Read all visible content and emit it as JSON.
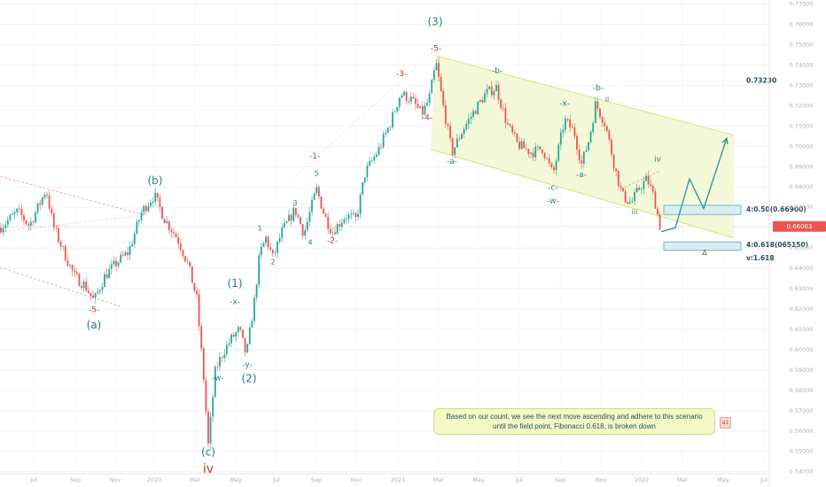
{
  "chart_data": {
    "type": "candlestick",
    "y_axis": {
      "range": [
        0.539,
        0.772
      ],
      "ticks": [
        "0.77000",
        "0.76000",
        "0.75000",
        "0.74000",
        "0.73000",
        "0.72000",
        "0.71000",
        "0.70000",
        "0.69000",
        "0.68000",
        "0.67000",
        "0.66000",
        "0.65000",
        "0.64000",
        "0.63000",
        "0.62000",
        "0.61000",
        "0.60000",
        "0.59000",
        "0.58000",
        "0.57000",
        "0.56000",
        "0.55000",
        "0.54000"
      ],
      "current_price": "0.66063",
      "current_price_value": 0.66063
    },
    "x_axis": {
      "ticks": [
        "Jul",
        "Sep",
        "Nov",
        "2020",
        "Mar",
        "May",
        "Jul",
        "Sep",
        "Nov",
        "2021",
        "Mar",
        "May",
        "Jul",
        "Sep",
        "Nov",
        "2022",
        "Mar",
        "May",
        "Jul"
      ]
    },
    "price_path": [
      {
        "t": 0,
        "p": 0.66
      },
      {
        "t": 20,
        "p": 0.668
      },
      {
        "t": 33,
        "p": 0.661
      },
      {
        "t": 45,
        "p": 0.672
      },
      {
        "t": 52,
        "p": 0.679
      },
      {
        "t": 60,
        "p": 0.661
      },
      {
        "t": 72,
        "p": 0.648
      },
      {
        "t": 84,
        "p": 0.636
      },
      {
        "t": 95,
        "p": 0.632
      },
      {
        "t": 106,
        "p": 0.624
      },
      {
        "t": 118,
        "p": 0.636
      },
      {
        "t": 132,
        "p": 0.643
      },
      {
        "t": 145,
        "p": 0.648
      },
      {
        "t": 160,
        "p": 0.668
      },
      {
        "t": 174,
        "p": 0.676
      },
      {
        "t": 186,
        "p": 0.664
      },
      {
        "t": 200,
        "p": 0.655
      },
      {
        "t": 212,
        "p": 0.642
      },
      {
        "t": 222,
        "p": 0.625
      },
      {
        "t": 230,
        "p": 0.585
      },
      {
        "t": 235,
        "p": 0.553
      },
      {
        "t": 243,
        "p": 0.59
      },
      {
        "t": 252,
        "p": 0.599
      },
      {
        "t": 262,
        "p": 0.606
      },
      {
        "t": 270,
        "p": 0.61
      },
      {
        "t": 278,
        "p": 0.597
      },
      {
        "t": 287,
        "p": 0.624
      },
      {
        "t": 293,
        "p": 0.647
      },
      {
        "t": 300,
        "p": 0.655
      },
      {
        "t": 308,
        "p": 0.645
      },
      {
        "t": 318,
        "p": 0.658
      },
      {
        "t": 333,
        "p": 0.669
      },
      {
        "t": 343,
        "p": 0.657
      },
      {
        "t": 357,
        "p": 0.679
      },
      {
        "t": 367,
        "p": 0.665
      },
      {
        "t": 375,
        "p": 0.658
      },
      {
        "t": 390,
        "p": 0.666
      },
      {
        "t": 402,
        "p": 0.664
      },
      {
        "t": 412,
        "p": 0.687
      },
      {
        "t": 428,
        "p": 0.699
      },
      {
        "t": 440,
        "p": 0.711
      },
      {
        "t": 452,
        "p": 0.726
      },
      {
        "t": 464,
        "p": 0.723
      },
      {
        "t": 476,
        "p": 0.716
      },
      {
        "t": 484,
        "p": 0.723
      },
      {
        "t": 492,
        "p": 0.741
      },
      {
        "t": 500,
        "p": 0.72
      },
      {
        "t": 510,
        "p": 0.697
      },
      {
        "t": 522,
        "p": 0.708
      },
      {
        "t": 536,
        "p": 0.718
      },
      {
        "t": 548,
        "p": 0.726
      },
      {
        "t": 560,
        "p": 0.729
      },
      {
        "t": 572,
        "p": 0.711
      },
      {
        "t": 584,
        "p": 0.701
      },
      {
        "t": 600,
        "p": 0.697
      },
      {
        "t": 612,
        "p": 0.699
      },
      {
        "t": 624,
        "p": 0.686
      },
      {
        "t": 637,
        "p": 0.713
      },
      {
        "t": 648,
        "p": 0.707
      },
      {
        "t": 656,
        "p": 0.691
      },
      {
        "t": 665,
        "p": 0.704
      },
      {
        "t": 672,
        "p": 0.721
      },
      {
        "t": 683,
        "p": 0.711
      },
      {
        "t": 694,
        "p": 0.689
      },
      {
        "t": 702,
        "p": 0.676
      },
      {
        "t": 712,
        "p": 0.672
      },
      {
        "t": 722,
        "p": 0.68
      },
      {
        "t": 730,
        "p": 0.684
      },
      {
        "t": 738,
        "p": 0.675
      },
      {
        "t": 746,
        "p": 0.658
      }
    ],
    "annotations": [
      {
        "text": "(a)",
        "t": 106,
        "p": 0.6105,
        "color": "#2a7a86",
        "size": 12
      },
      {
        "text": "-5-",
        "t": 106,
        "p": 0.6185,
        "color": "#c0392b",
        "size": 9
      },
      {
        "text": "(b)",
        "t": 175,
        "p": 0.6815,
        "color": "#2a7a86",
        "size": 12
      },
      {
        "text": "(c)",
        "t": 235,
        "p": 0.548,
        "color": "#2a7a86",
        "size": 12
      },
      {
        "text": "iv",
        "t": 235,
        "p": 0.5395,
        "color": "#c0392b",
        "size": 14
      },
      {
        "text": "-w-",
        "t": 246,
        "p": 0.585,
        "color": "#2a7a86",
        "size": 9
      },
      {
        "text": "(1)",
        "t": 265,
        "p": 0.631,
        "color": "#2a7a86",
        "size": 12
      },
      {
        "text": "-x-",
        "t": 265,
        "p": 0.6225,
        "color": "#2a7a86",
        "size": 9
      },
      {
        "text": "-y-",
        "t": 279,
        "p": 0.5915,
        "color": "#2a7a86",
        "size": 9
      },
      {
        "text": "(2)",
        "t": 281,
        "p": 0.584,
        "color": "#2a7a86",
        "size": 12
      },
      {
        "text": "1",
        "t": 293,
        "p": 0.6585,
        "color": "#2a7a86",
        "size": 8
      },
      {
        "text": "2",
        "t": 308,
        "p": 0.642,
        "color": "#2a7a86",
        "size": 8
      },
      {
        "text": "3",
        "t": 333,
        "p": 0.671,
        "color": "#2a7a86",
        "size": 8
      },
      {
        "text": "4",
        "t": 350,
        "p": 0.6515,
        "color": "#2a7a86",
        "size": 8
      },
      {
        "text": "5",
        "t": 357,
        "p": 0.6855,
        "color": "#2a7a86",
        "size": 8
      },
      {
        "text": "-1-",
        "t": 355,
        "p": 0.694,
        "color": "#c0392b",
        "size": 9
      },
      {
        "text": "-2-",
        "t": 375,
        "p": 0.6525,
        "color": "#c0392b",
        "size": 9
      },
      {
        "text": "-3-",
        "t": 453,
        "p": 0.7345,
        "color": "#c0392b",
        "size": 9
      },
      {
        "text": "-4-",
        "t": 482,
        "p": 0.713,
        "color": "#c0392b",
        "size": 9
      },
      {
        "text": "(3)",
        "t": 491,
        "p": 0.7595,
        "color": "#2a7a86",
        "size": 12
      },
      {
        "text": "-5-",
        "t": 492,
        "p": 0.747,
        "color": "#c0392b",
        "size": 9
      },
      {
        "text": "-a-",
        "t": 510,
        "p": 0.6915,
        "color": "#2a7a86",
        "size": 9
      },
      {
        "text": "-b-",
        "t": 561,
        "p": 0.736,
        "color": "#2a7a86",
        "size": 9
      },
      {
        "text": "-x-",
        "t": 637,
        "p": 0.72,
        "color": "#2a7a86",
        "size": 9
      },
      {
        "text": "-c-",
        "t": 624,
        "p": 0.6785,
        "color": "#2a7a86",
        "size": 9
      },
      {
        "text": "-w-",
        "t": 624,
        "p": 0.672,
        "color": "#2a7a86",
        "size": 9
      },
      {
        "text": "-a-",
        "t": 656,
        "p": 0.685,
        "color": "#2a7a86",
        "size": 9
      },
      {
        "text": "-b-",
        "t": 675,
        "p": 0.7275,
        "color": "#2a7a86",
        "size": 9
      },
      {
        "text": "ii",
        "t": 685,
        "p": 0.722,
        "color": "#2a7a86",
        "size": 8
      },
      {
        "text": "iii",
        "t": 716,
        "p": 0.6665,
        "color": "#2a7a86",
        "size": 8
      },
      {
        "text": "iv",
        "t": 742,
        "p": 0.6925,
        "color": "#2a7a86",
        "size": 9
      }
    ],
    "price_labels": [
      {
        "text": "0.73230",
        "p": 0.7323
      },
      {
        "text": "4:0.50(0.66900)",
        "p": 0.669
      },
      {
        "text": "4:0.618(065150)",
        "p": 0.6515
      },
      {
        "text": "v:1.618",
        "p": 0.645
      }
    ],
    "fib_zones": [
      {
        "p_top": 0.671,
        "p_bottom": 0.6665
      },
      {
        "p_top": 0.653,
        "p_bottom": 0.649
      }
    ],
    "channel": {
      "upper_start": {
        "t": 492,
        "p": 0.7445
      },
      "upper_end": {
        "t": 828,
        "p": 0.7055
      },
      "lower_start": {
        "t": 486,
        "p": 0.6985
      },
      "lower_end": {
        "t": 828,
        "p": 0.655
      }
    },
    "projection": [
      {
        "t": 746,
        "p": 0.658
      },
      {
        "t": 762,
        "p": 0.66
      },
      {
        "t": 778,
        "p": 0.684
      },
      {
        "t": 794,
        "p": 0.6695
      },
      {
        "t": 820,
        "p": 0.704
      }
    ],
    "future_marker": "Δ",
    "note": "Based on our count, we see the next move ascending and adhere to this scenario until the field point, Fibonacci 0.618, is broken down",
    "colors": {
      "up": "#26a69a",
      "down": "#ef5350",
      "wave_teal": "#2a7a86",
      "wave_red": "#c0392b",
      "channel_fill": "#f3f8d8",
      "channel_line": "#d8e27a",
      "price_tag": "#ef5350",
      "zone_fill": "#d8eef3",
      "zone_border": "#5aa6b8",
      "projection": "#2a8fa0"
    }
  }
}
